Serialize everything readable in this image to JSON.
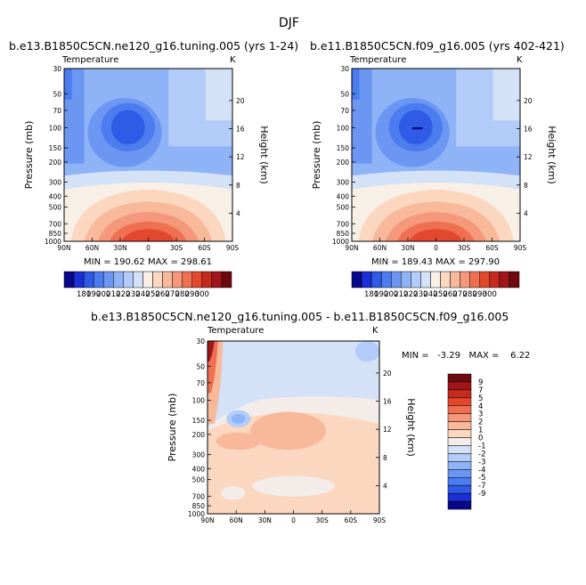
{
  "page_title": "DJF",
  "chart_data": [
    {
      "type": "heatmap",
      "title": "b.e13.B1850C5CN.ne120_g16.tuning.005 (yrs 1-24)",
      "subtitle_left": "Temperature",
      "subtitle_right": "K",
      "xlabel": "",
      "ylabel": "Pressure (mb)",
      "y2label": "Height (km)",
      "x_ticks": [
        "90N",
        "60N",
        "30N",
        "0",
        "30S",
        "60S",
        "90S"
      ],
      "y_ticks": [
        "30",
        "50",
        "70",
        "100",
        "150",
        "200",
        "300",
        "400",
        "500",
        "700",
        "850",
        "1000"
      ],
      "y2_ticks": [
        "20",
        "16",
        "12",
        "8",
        "4"
      ],
      "stats": "MIN = 190.62   MAX = 298.61",
      "min": 190.62,
      "max": 298.61,
      "colorbar_labels": [
        "180",
        "190",
        "200",
        "210",
        "220",
        "230",
        "240",
        "250",
        "260",
        "270",
        "280",
        "290",
        "300"
      ]
    },
    {
      "type": "heatmap",
      "title": "b.e11.B1850C5CN.f09_g16.005 (yrs 402-421)",
      "subtitle_left": "Temperature",
      "subtitle_right": "K",
      "xlabel": "",
      "ylabel": "Pressure (mb)",
      "y2label": "Height (km)",
      "x_ticks": [
        "90N",
        "60N",
        "30N",
        "0",
        "30S",
        "60S",
        "90S"
      ],
      "y_ticks": [
        "30",
        "50",
        "70",
        "100",
        "150",
        "200",
        "300",
        "400",
        "500",
        "700",
        "850",
        "1000"
      ],
      "y2_ticks": [
        "20",
        "16",
        "12",
        "8",
        "4"
      ],
      "stats": "MIN = 189.43   MAX = 297.90",
      "min": 189.43,
      "max": 297.9,
      "colorbar_labels": [
        "180",
        "190",
        "200",
        "210",
        "220",
        "230",
        "240",
        "250",
        "260",
        "270",
        "280",
        "290",
        "300"
      ]
    },
    {
      "type": "heatmap",
      "title": "b.e13.B1850C5CN.ne120_g16.tuning.005 - b.e11.B1850C5CN.f09_g16.005",
      "subtitle_left": "Temperature",
      "subtitle_right": "K",
      "xlabel": "",
      "ylabel": "Pressure (mb)",
      "y2label": "Height (km)",
      "x_ticks": [
        "90N",
        "60N",
        "30N",
        "0",
        "30S",
        "60S",
        "90S"
      ],
      "y_ticks": [
        "30",
        "50",
        "70",
        "100",
        "150",
        "200",
        "300",
        "400",
        "500",
        "700",
        "850",
        "1000"
      ],
      "y2_ticks": [
        "20",
        "16",
        "12",
        "8",
        "4"
      ],
      "stats": "MIN =   -3.29   MAX =    6.22",
      "min": -3.29,
      "max": 6.22,
      "colorbar_labels": [
        "9",
        "7",
        "5",
        "4",
        "3",
        "2",
        "1",
        "0",
        "-1",
        "-2",
        "-3",
        "-4",
        "-5",
        "-7",
        "-9"
      ]
    }
  ],
  "colors": {
    "abs_palette": [
      "#08088a",
      "#1a2fd6",
      "#2f5be6",
      "#4b7cf0",
      "#6b97f3",
      "#8fb3f7",
      "#b2cbf8",
      "#d4e2f8",
      "#f8efe6",
      "#fbd7c0",
      "#f8b99a",
      "#f4977a",
      "#ee6f52",
      "#e2482e",
      "#c52b1d",
      "#a0161a",
      "#6e0a0f"
    ],
    "diff_palette": [
      "#6e0a0f",
      "#a0161a",
      "#c52b1d",
      "#e2482e",
      "#ee6f52",
      "#f4977a",
      "#f8b99a",
      "#fbd7c0",
      "#f4ece8",
      "#d4e2f8",
      "#b2cbf8",
      "#8fb3f7",
      "#6b97f3",
      "#4b7cf0",
      "#2f5be6",
      "#1a2fd6",
      "#08088a"
    ]
  }
}
